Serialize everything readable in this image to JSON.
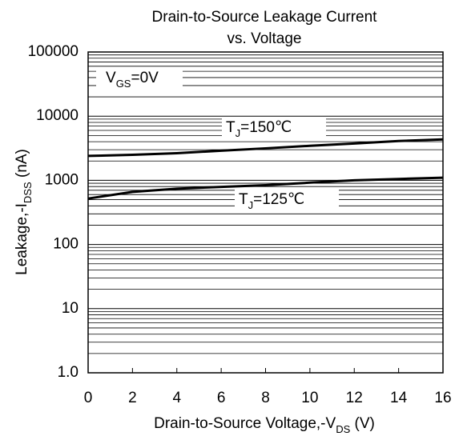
{
  "chart_data": {
    "type": "line",
    "title": [
      "Drain-to-Source Leakage Current",
      "vs. Voltage"
    ],
    "xlabel": [
      "Drain-to-Source Voltage,-V",
      "DS",
      " (V)"
    ],
    "ylabel": [
      "Leakage,-I",
      "DSS",
      " (nA)"
    ],
    "annotations": [
      {
        "text": [
          "V",
          "GS",
          "=0V"
        ]
      }
    ],
    "x": [
      0,
      2,
      4,
      6,
      8,
      10,
      12,
      14,
      16
    ],
    "series": [
      {
        "name": [
          "T",
          "J",
          "=150℃"
        ],
        "color": "#000000",
        "values": [
          2400,
          2500,
          2650,
          2900,
          3150,
          3450,
          3750,
          4100,
          4350
        ]
      },
      {
        "name": [
          "T",
          "J",
          "=125℃"
        ],
        "color": "#000000",
        "values": [
          520,
          660,
          740,
          790,
          840,
          920,
          1000,
          1050,
          1100
        ]
      }
    ],
    "xlim": [
      0,
      16
    ],
    "xticks": [
      0,
      2,
      4,
      6,
      8,
      10,
      12,
      14,
      16
    ],
    "ylim": [
      1,
      100000
    ],
    "yticks": [
      {
        "value": 1,
        "label": "1.0"
      },
      10,
      100,
      1000,
      10000,
      100000
    ],
    "log_y": true,
    "grid": true,
    "minor_grid": true
  }
}
